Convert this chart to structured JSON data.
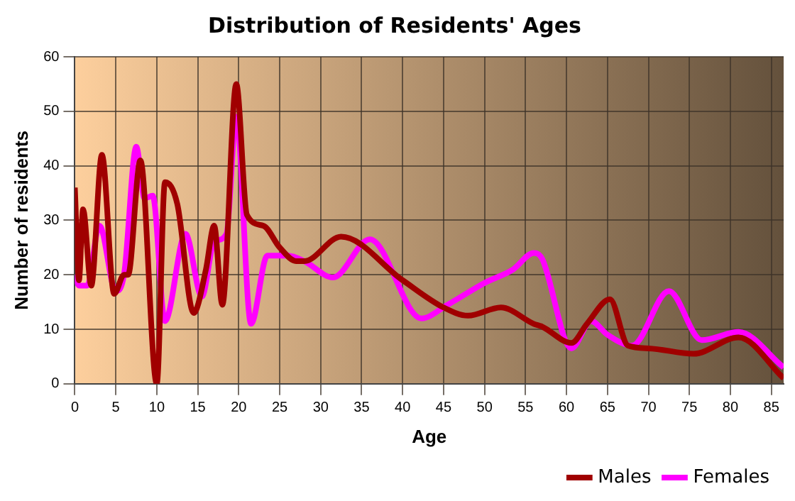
{
  "chart_data": {
    "type": "line",
    "title": "Distribution of Residents' Ages",
    "xlabel": "Age",
    "ylabel": "Number of residents",
    "xlim": [
      0,
      86.5
    ],
    "xticks": [
      0,
      5,
      10,
      15,
      20,
      25,
      30,
      35,
      40,
      45,
      50,
      55,
      60,
      65,
      70,
      75,
      80,
      85
    ],
    "ylim": [
      0,
      60
    ],
    "yticks": [
      0,
      10,
      20,
      30,
      40,
      50,
      60
    ],
    "grid": true,
    "legend": "bottom right",
    "marker": "none",
    "line_style": "solid",
    "series": [
      {
        "name": "Males",
        "color": "#a00000",
        "x": [
          0,
          0.5,
          1,
          2,
          3.3,
          4.8,
          6,
          6.5,
          8,
          10,
          11,
          12.5,
          14.5,
          16,
          17,
          18,
          19.7,
          21,
          23,
          25,
          27,
          28,
          32.5,
          40,
          45,
          48,
          52,
          56,
          57,
          60.6,
          62.5,
          65.3,
          67.5,
          70,
          75.5,
          81,
          86.5
        ],
        "values": [
          36,
          19,
          32,
          18,
          42,
          16.5,
          20,
          20,
          41,
          0,
          37,
          33,
          13,
          21,
          29,
          14.5,
          55,
          31,
          29,
          25,
          22.5,
          22.5,
          27,
          19,
          14,
          12.5,
          14,
          11,
          10.5,
          7.5,
          11,
          15.5,
          7,
          6.5,
          5.5,
          8.5,
          1
        ]
      },
      {
        "name": "Females",
        "color": "#ff00ff",
        "x": [
          0,
          0.5,
          1.5,
          3,
          5,
          6,
          7.5,
          8.5,
          9.5,
          11,
          13.5,
          15.5,
          17,
          18.5,
          19.7,
          21.5,
          23.5,
          26,
          28,
          31.5,
          36,
          42.3,
          45.5,
          50,
          53.5,
          56,
          57,
          60.6,
          63,
          65,
          68,
          72.5,
          76.5,
          81,
          86.5
        ],
        "values": [
          20,
          18,
          18,
          29,
          17,
          20,
          43.5,
          34,
          34.5,
          11.5,
          27.5,
          16,
          26,
          27.5,
          49,
          11,
          23.5,
          23.5,
          22.5,
          19.5,
          26.5,
          12,
          14.5,
          18.5,
          21,
          24,
          23,
          6.5,
          11.5,
          9,
          7,
          17,
          8,
          9.5,
          3
        ]
      }
    ]
  }
}
